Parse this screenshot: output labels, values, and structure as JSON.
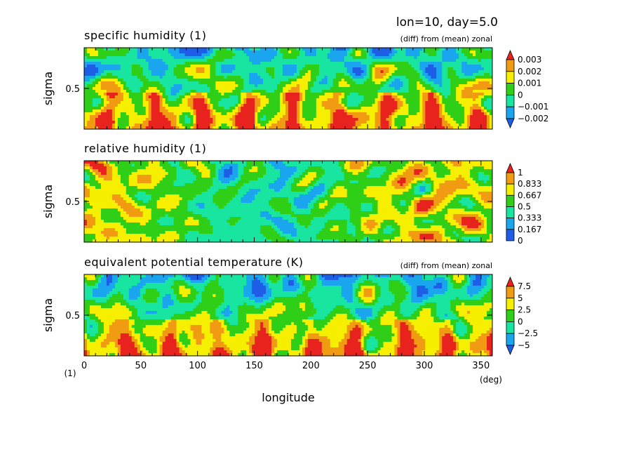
{
  "header": {
    "title": "lon=10, day=5.0"
  },
  "x_axis": {
    "label": "longitude",
    "unit": "(deg)",
    "left_unit": "(1)",
    "ticks": [
      "0",
      "50",
      "100",
      "150",
      "200",
      "250",
      "300",
      "350"
    ],
    "range": [
      0,
      360
    ]
  },
  "chart_data": [
    {
      "type": "heatmap",
      "title": "specific humidity (1)",
      "note": "(diff) from (mean) zonal",
      "ylabel": "sigma",
      "ytick": "0.5",
      "xlim": [
        0,
        360
      ],
      "ylim": [
        0,
        1
      ],
      "colorbar_labels": [
        "0.003",
        "0.002",
        "0.001",
        "0",
        "−0.001",
        "−0.002"
      ],
      "colorbar_colors": [
        "#e8231e",
        "#f09b12",
        "#f6f000",
        "#2fcf17",
        "#18e6a0",
        "#1aa6ef",
        "#1e5ee6"
      ]
    },
    {
      "type": "heatmap",
      "title": "relative humidity (1)",
      "note": "",
      "ylabel": "sigma",
      "ytick": "0.5",
      "xlim": [
        0,
        360
      ],
      "ylim": [
        0,
        1
      ],
      "colorbar_labels": [
        "1",
        "0.833",
        "0.667",
        "0.5",
        "0.333",
        "0.167",
        "0"
      ],
      "colorbar_colors": [
        "#e8231e",
        "#f09b12",
        "#f6f000",
        "#2fcf17",
        "#18e6a0",
        "#1aa6ef",
        "#1e5ee6"
      ]
    },
    {
      "type": "heatmap",
      "title": "equivalent potential temperature (K)",
      "note": "(diff) from (mean) zonal",
      "ylabel": "sigma",
      "ytick": "0.5",
      "xlim": [
        0,
        360
      ],
      "ylim": [
        0,
        1
      ],
      "colorbar_labels": [
        "7.5",
        "5",
        "2.5",
        "0",
        "−2.5",
        "−5"
      ],
      "colorbar_colors": [
        "#e8231e",
        "#f09b12",
        "#f6f000",
        "#2fcf17",
        "#18e6a0",
        "#1aa6ef",
        "#1e5ee6"
      ]
    }
  ]
}
